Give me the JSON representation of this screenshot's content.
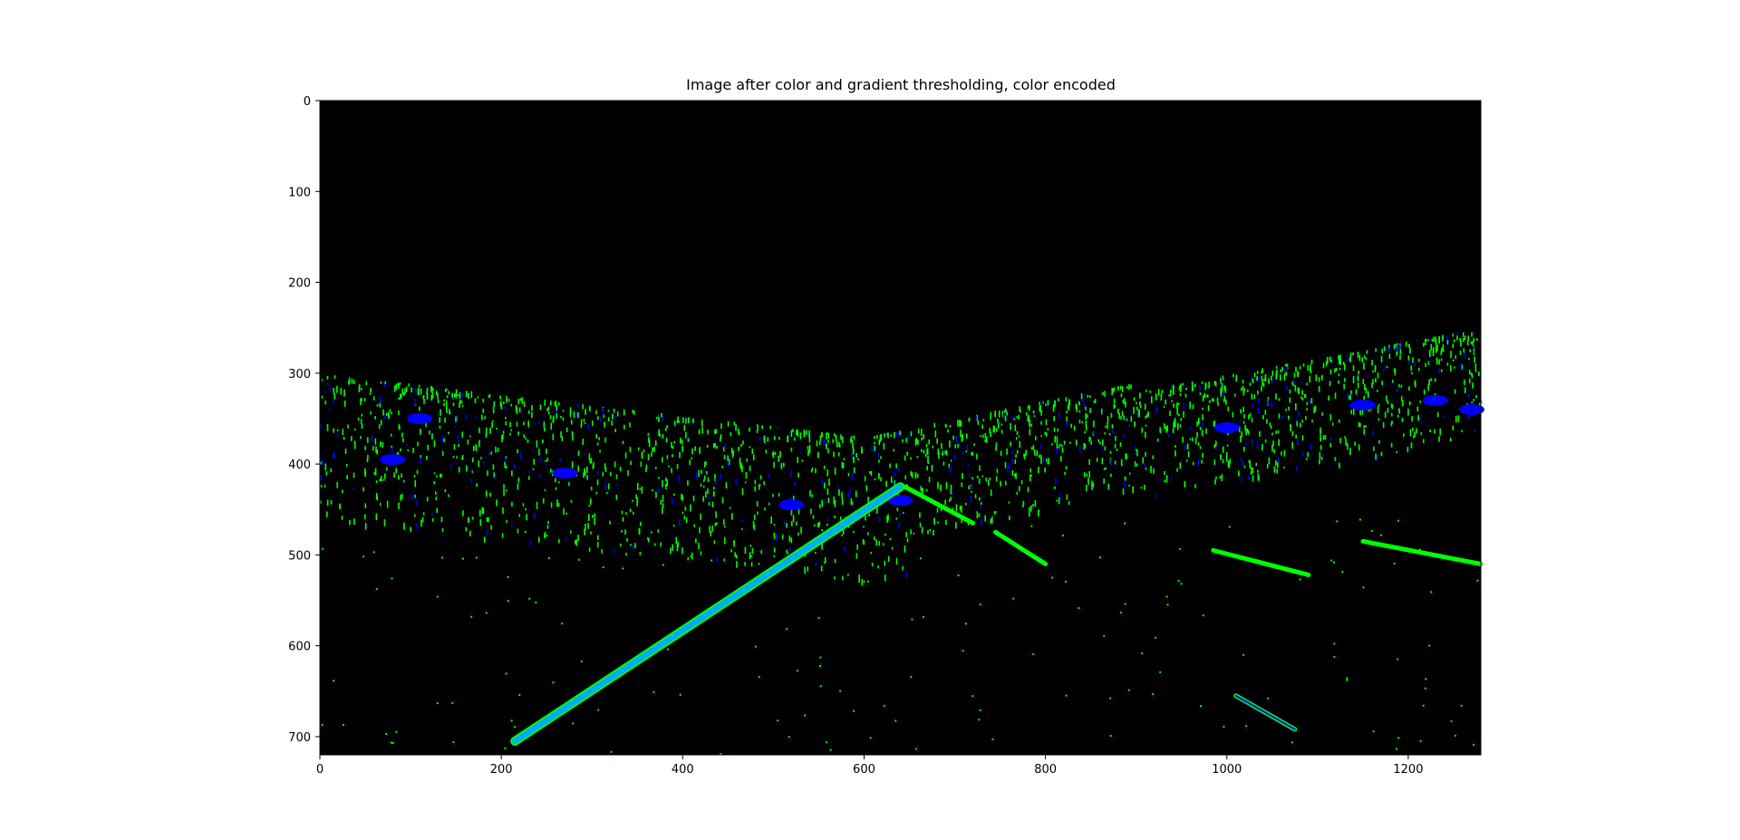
{
  "chart_data": {
    "type": "image",
    "title": "Image after color and gradient thresholding, color encoded",
    "xlabel": "",
    "ylabel": "",
    "xlim": [
      0,
      1280
    ],
    "ylim": [
      720,
      0
    ],
    "x_ticks": [
      0,
      200,
      400,
      600,
      800,
      1000,
      1200
    ],
    "y_ticks": [
      0,
      100,
      200,
      300,
      400,
      500,
      600,
      700
    ],
    "grid": false,
    "background_color": "#000000",
    "colors": {
      "gradient": "#00ff00",
      "color_threshold": "#0000ff",
      "both": "#00ffff"
    },
    "lane_lines": [
      {
        "name": "left-lane-line",
        "points": [
          [
            215,
            705
          ],
          [
            640,
            425
          ]
        ],
        "color": "#00aaff"
      },
      {
        "name": "right-lane-dash-far",
        "points": [
          [
            645,
            425
          ],
          [
            720,
            465
          ]
        ],
        "color": "#00ff00"
      },
      {
        "name": "right-lane-dash-mid",
        "points": [
          [
            745,
            475
          ],
          [
            800,
            510
          ]
        ],
        "color": "#00ff00"
      },
      {
        "name": "right-lane-dash-near",
        "points": [
          [
            1010,
            655
          ],
          [
            1075,
            692
          ]
        ],
        "color": "#0000ff"
      },
      {
        "name": "far-lane-dash",
        "points": [
          [
            985,
            495
          ],
          [
            1090,
            522
          ]
        ],
        "color": "#00ff00"
      },
      {
        "name": "far-right-dash",
        "points": [
          [
            1150,
            485
          ],
          [
            1280,
            510
          ]
        ],
        "color": "#00ff00"
      }
    ]
  }
}
